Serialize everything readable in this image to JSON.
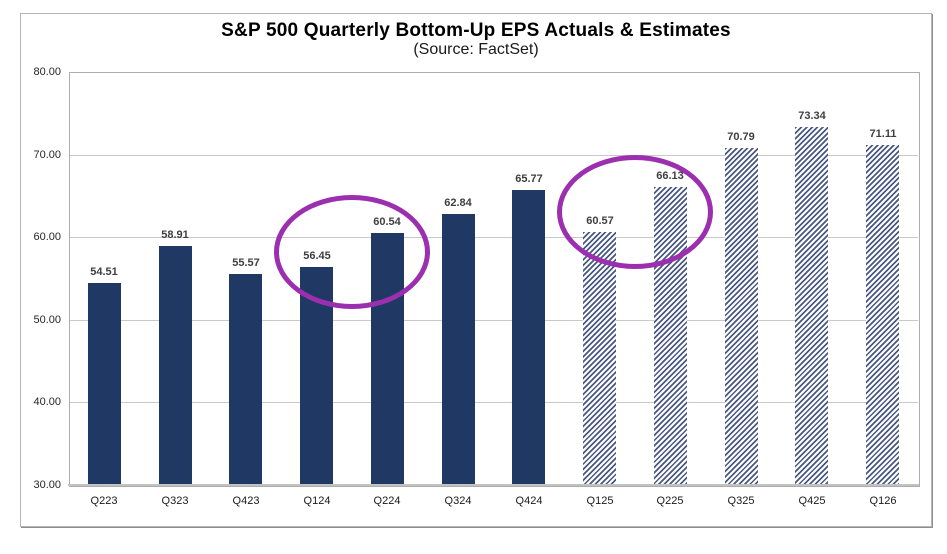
{
  "chart_data": {
    "type": "bar",
    "title": "S&P 500 Quarterly Bottom-Up EPS Actuals & Estimates",
    "subtitle": "(Source: FactSet)",
    "xlabel": "",
    "ylabel": "",
    "categories": [
      "Q223",
      "Q323",
      "Q423",
      "Q124",
      "Q224",
      "Q324",
      "Q424",
      "Q125",
      "Q225",
      "Q325",
      "Q425",
      "Q126"
    ],
    "values": [
      54.51,
      58.91,
      55.57,
      56.45,
      60.54,
      62.84,
      65.77,
      60.57,
      66.13,
      70.79,
      73.34,
      71.11
    ],
    "bar_kinds": [
      "actual",
      "actual",
      "actual",
      "actual",
      "actual",
      "actual",
      "actual",
      "estimate",
      "estimate",
      "estimate",
      "estimate",
      "estimate"
    ],
    "bar_kind_styles": {
      "actual": "solid navy fill",
      "estimate": "diagonal navy hatching"
    },
    "ylim": [
      30,
      80
    ],
    "yticks": [
      30,
      40,
      50,
      60,
      70,
      80
    ],
    "ytick_decimals": 2,
    "value_label_decimals": 2,
    "grid": "horizontal",
    "legend": "none",
    "colors": {
      "actual_bar": "#1F3864",
      "estimate_stripe": "#4A5983",
      "annotation_ellipse": "#9B2FB0",
      "gridline": "#C9C9C9",
      "plot_border": "#ADADAD",
      "value_label": "#3F3F3F"
    },
    "annotations": [
      {
        "shape": "ellipse",
        "around_categories": [
          "Q124",
          "Q224"
        ]
      },
      {
        "shape": "ellipse",
        "around_categories": [
          "Q125",
          "Q225"
        ]
      }
    ]
  }
}
